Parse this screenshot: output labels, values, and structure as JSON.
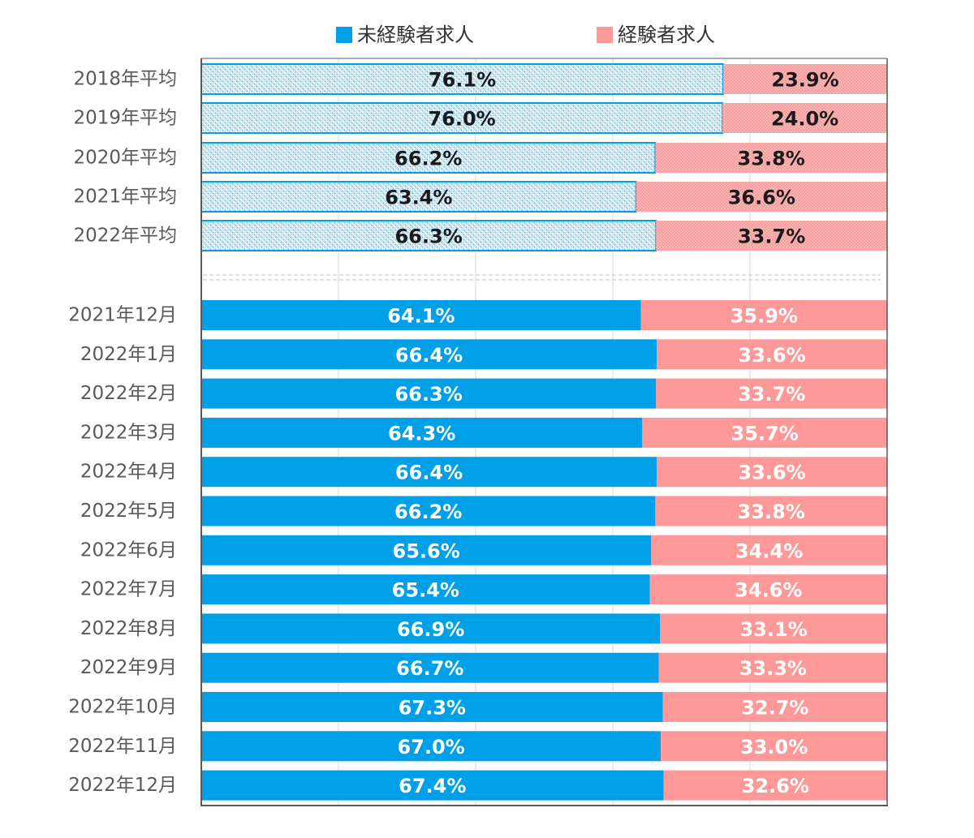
{
  "chart_data": {
    "type": "bar",
    "orientation": "horizontal",
    "stacked": true,
    "percent_stacked": true,
    "xlim": [
      0,
      100
    ],
    "grid": true,
    "legend_position": "top",
    "colors": {
      "inexperienced": "#00A0E9",
      "experienced": "#FF9999",
      "hatch_dots": "#5FC2F0",
      "hatch_lines": "#9FDAF5",
      "dots_pink": "#FFC4C4"
    },
    "series": [
      {
        "name": "未経験者求人",
        "values": [
          76.1,
          76.0,
          66.2,
          63.4,
          66.3,
          64.1,
          66.4,
          66.3,
          64.3,
          66.4,
          66.2,
          65.6,
          65.4,
          66.9,
          66.7,
          67.3,
          67.0,
          67.4
        ],
        "labels": [
          "76.1%",
          "76.0%",
          "66.2%",
          "63.4%",
          "66.3%",
          "64.1%",
          "66.4%",
          "66.3%",
          "64.3%",
          "66.4%",
          "66.2%",
          "65.6%",
          "65.4%",
          "66.9%",
          "66.7%",
          "67.3%",
          "67.0%",
          "67.4%"
        ]
      },
      {
        "name": "経験者求人",
        "values": [
          23.9,
          24.0,
          33.8,
          36.6,
          33.7,
          35.9,
          33.6,
          33.7,
          35.7,
          33.6,
          33.8,
          34.4,
          34.6,
          33.1,
          33.3,
          32.7,
          33.0,
          32.6
        ],
        "labels": [
          "23.9%",
          "24.0%",
          "33.8%",
          "36.6%",
          "33.7%",
          "35.9%",
          "33.6%",
          "33.7%",
          "35.7%",
          "33.6%",
          "33.8%",
          "34.4%",
          "34.6%",
          "33.1%",
          "33.3%",
          "32.7%",
          "33.0%",
          "32.6%"
        ]
      }
    ],
    "categories": [
      "2018年平均",
      "2019年平均",
      "2020年平均",
      "2021年平均",
      "2022年平均",
      "2021年12月",
      "2022年1月",
      "2022年2月",
      "2022年3月",
      "2022年4月",
      "2022年5月",
      "2022年6月",
      "2022年7月",
      "2022年8月",
      "2022年9月",
      "2022年10月",
      "2022年11月",
      "2022年12月"
    ],
    "patterned_categories": [
      "2018年平均",
      "2019年平均",
      "2020年平均",
      "2021年平均",
      "2022年平均"
    ]
  }
}
